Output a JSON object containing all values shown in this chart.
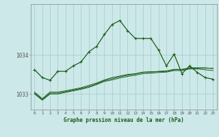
{
  "title": "Graphe pression niveau de la mer (hPa)",
  "bg_color": "#cce8e8",
  "grid_color": "#aad0d0",
  "line_color": "#1a5c1a",
  "xlim": [
    -0.5,
    23.5
  ],
  "ylim": [
    1032.6,
    1035.3
  ],
  "yticks": [
    1033,
    1034
  ],
  "xticks": [
    0,
    1,
    2,
    3,
    4,
    5,
    6,
    7,
    8,
    9,
    10,
    11,
    12,
    13,
    14,
    15,
    16,
    17,
    18,
    19,
    20,
    21,
    22,
    23
  ],
  "series1": [
    1033.62,
    1033.42,
    1033.35,
    1033.58,
    1033.58,
    1033.72,
    1033.82,
    1034.08,
    1034.22,
    1034.52,
    1034.78,
    1034.88,
    1034.62,
    1034.42,
    1034.42,
    1034.42,
    1034.12,
    1033.72,
    1034.02,
    1033.52,
    1033.72,
    1033.55,
    1033.42,
    1033.38
  ],
  "series2": [
    1033.05,
    1032.88,
    1033.05,
    1033.05,
    1033.08,
    1033.12,
    1033.16,
    1033.22,
    1033.28,
    1033.36,
    1033.42,
    1033.46,
    1033.5,
    1033.52,
    1033.56,
    1033.57,
    1033.57,
    1033.58,
    1033.62,
    1033.62,
    1033.66,
    1033.66,
    1033.66,
    1033.66
  ],
  "series3": [
    1033.02,
    1032.86,
    1033.02,
    1033.02,
    1033.06,
    1033.1,
    1033.14,
    1033.19,
    1033.26,
    1033.34,
    1033.39,
    1033.44,
    1033.48,
    1033.51,
    1033.55,
    1033.56,
    1033.58,
    1033.59,
    1033.63,
    1033.63,
    1033.67,
    1033.67,
    1033.67,
    1033.65
  ],
  "series4": [
    1033.0,
    1032.84,
    1033.0,
    1033.0,
    1033.04,
    1033.08,
    1033.12,
    1033.17,
    1033.24,
    1033.32,
    1033.36,
    1033.41,
    1033.45,
    1033.48,
    1033.52,
    1033.53,
    1033.55,
    1033.56,
    1033.6,
    1033.6,
    1033.64,
    1033.64,
    1033.62,
    1033.6
  ]
}
